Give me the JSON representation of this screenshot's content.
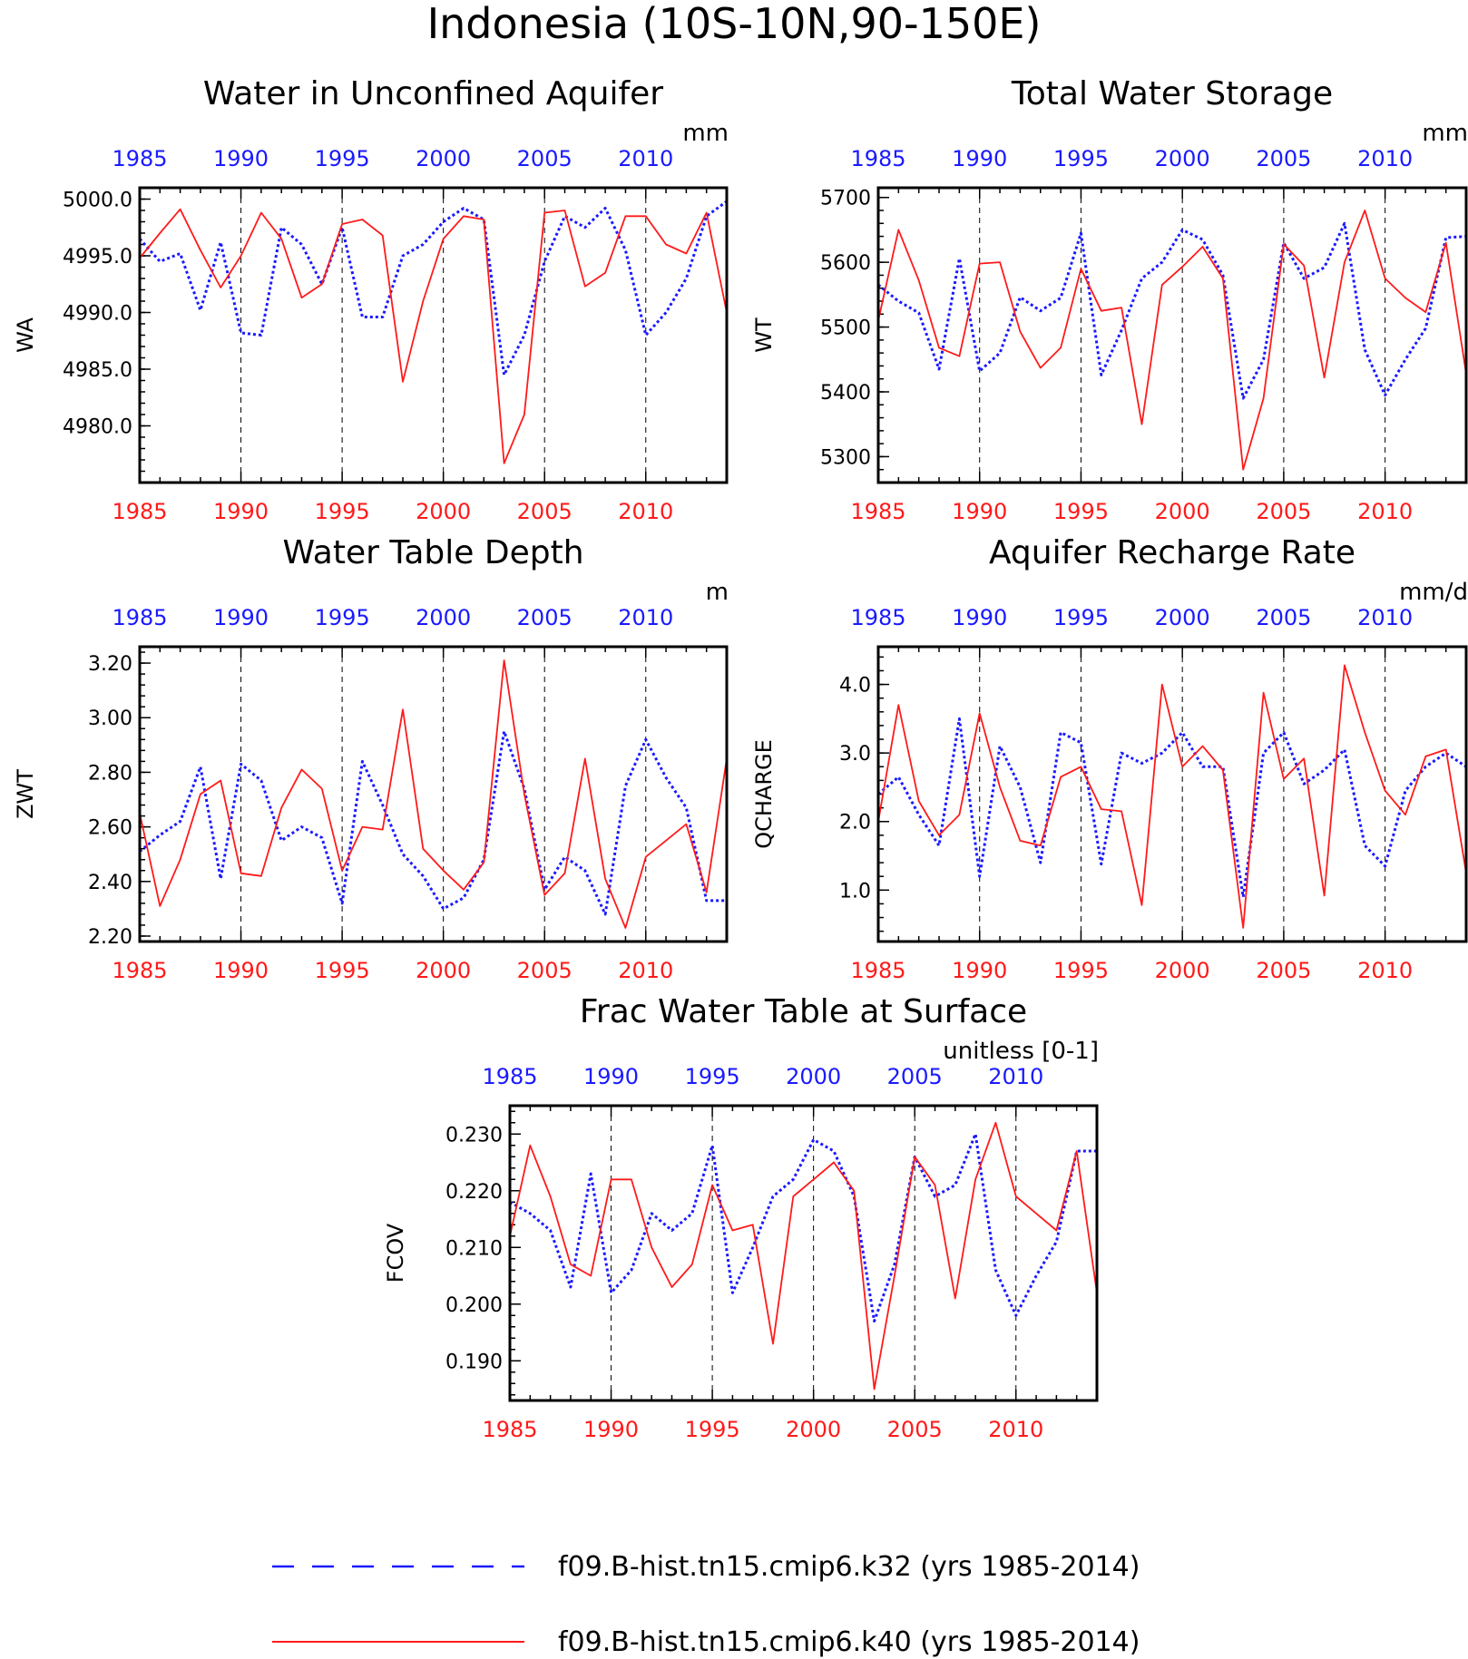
{
  "figure": {
    "title": "Indonesia (10S-10N,90-150E)"
  },
  "legend": [
    {
      "label": "f09.B-hist.tn15.cmip6.k32 (yrs 1985-2014)",
      "color": "#1a1aff",
      "style": "dashed"
    },
    {
      "label": "f09.B-hist.tn15.cmip6.k40 (yrs 1985-2014)",
      "color": "#ff1a1a",
      "style": "solid"
    }
  ],
  "colors": {
    "k32": "#1a1aff",
    "k40": "#ff1a1a",
    "axis": "#000000"
  },
  "chart_data": [
    {
      "type": "line",
      "title": "Water in Unconfined Aquifer",
      "ylabel": "WA",
      "units": "mm",
      "xlim": [
        1985,
        2014
      ],
      "ylim": [
        4975,
        5001
      ],
      "xticks": [
        1985,
        1990,
        1995,
        2000,
        2005,
        2010
      ],
      "yticks": [
        4980,
        4985,
        4990,
        4995,
        5000
      ],
      "ytick_labels": [
        "4980.0",
        "4985.0",
        "4990.0",
        "4995.0",
        "5000.0"
      ],
      "series": [
        {
          "key": "k32",
          "values": [
            4996.5,
            4994.5,
            4995.2,
            4990.2,
            4996.2,
            4988.2,
            4988.0,
            4997.5,
            4996.0,
            4992.5,
            4997.5,
            4989.6,
            4989.6,
            4995.0,
            4996.0,
            4998.0,
            4999.2,
            4998.2,
            4984.5,
            4988.0,
            4994.5,
            4998.5,
            4997.5,
            4999.2,
            4995.5,
            4988.0,
            4990.0,
            4993.0,
            4998.5,
            4999.8
          ]
        },
        {
          "key": "k40",
          "values": [
            4994.8,
            4997.0,
            4999.1,
            4995.5,
            4992.2,
            4995.0,
            4998.8,
            4996.5,
            4991.3,
            4992.5,
            4997.8,
            4998.2,
            4996.8,
            4983.9,
            4991.0,
            4996.5,
            4998.5,
            4998.2,
            4976.7,
            4981.0,
            4998.8,
            4999.0,
            4992.3,
            4993.5,
            4998.5,
            4998.5,
            4996.0,
            4995.2,
            4998.8,
            4990.0
          ]
        }
      ]
    },
    {
      "type": "line",
      "title": "Total Water Storage",
      "ylabel": "WT",
      "units": "mm",
      "xlim": [
        1985,
        2014
      ],
      "ylim": [
        5260,
        5715
      ],
      "xticks": [
        1985,
        1990,
        1995,
        2000,
        2005,
        2010
      ],
      "yticks": [
        5300,
        5400,
        5500,
        5600,
        5700
      ],
      "ytick_labels": [
        "5300",
        "5400",
        "5500",
        "5600",
        "5700"
      ],
      "series": [
        {
          "key": "k32",
          "values": [
            5565,
            5540,
            5522,
            5435,
            5606,
            5432,
            5460,
            5546,
            5525,
            5545,
            5645,
            5426,
            5495,
            5575,
            5600,
            5650,
            5635,
            5580,
            5390,
            5450,
            5630,
            5575,
            5592,
            5660,
            5465,
            5395,
            5450,
            5498,
            5638,
            5640
          ]
        },
        {
          "key": "k40",
          "values": [
            5510,
            5650,
            5572,
            5468,
            5455,
            5598,
            5600,
            5493,
            5437,
            5468,
            5590,
            5525,
            5530,
            5350,
            5565,
            5593,
            5624,
            5575,
            5280,
            5390,
            5628,
            5595,
            5422,
            5600,
            5680,
            5575,
            5545,
            5523,
            5630,
            5428
          ]
        }
      ]
    },
    {
      "type": "line",
      "title": "Water Table Depth",
      "ylabel": "ZWT",
      "units": "m",
      "xlim": [
        1985,
        2014
      ],
      "ylim": [
        2.18,
        3.26
      ],
      "xticks": [
        1985,
        1990,
        1995,
        2000,
        2005,
        2010
      ],
      "yticks": [
        2.2,
        2.4,
        2.6,
        2.8,
        3.0,
        3.2
      ],
      "ytick_labels": [
        "2.20",
        "2.40",
        "2.60",
        "2.80",
        "3.00",
        "3.20"
      ],
      "series": [
        {
          "key": "k32",
          "values": [
            2.51,
            2.57,
            2.62,
            2.82,
            2.41,
            2.83,
            2.77,
            2.55,
            2.6,
            2.56,
            2.32,
            2.84,
            2.68,
            2.5,
            2.42,
            2.3,
            2.34,
            2.48,
            2.95,
            2.74,
            2.37,
            2.49,
            2.44,
            2.28,
            2.75,
            2.92,
            2.78,
            2.67,
            2.33,
            2.33
          ]
        },
        {
          "key": "k40",
          "values": [
            2.65,
            2.31,
            2.48,
            2.72,
            2.77,
            2.43,
            2.42,
            2.67,
            2.81,
            2.74,
            2.44,
            2.6,
            2.59,
            3.03,
            2.52,
            2.44,
            2.37,
            2.47,
            3.21,
            2.72,
            2.35,
            2.43,
            2.85,
            2.41,
            2.23,
            2.49,
            2.55,
            2.61,
            2.36,
            2.85
          ]
        }
      ]
    },
    {
      "type": "line",
      "title": "Aquifer Recharge Rate",
      "ylabel": "QCHARGE",
      "units": "mm/d",
      "xlim": [
        1985,
        2014
      ],
      "ylim": [
        0.25,
        4.55
      ],
      "xticks": [
        1985,
        1990,
        1995,
        2000,
        2005,
        2010
      ],
      "yticks": [
        1.0,
        2.0,
        3.0,
        4.0
      ],
      "ytick_labels": [
        "1.0",
        "2.0",
        "3.0",
        "4.0"
      ],
      "series": [
        {
          "key": "k32",
          "values": [
            2.4,
            2.65,
            2.1,
            1.65,
            3.5,
            1.2,
            3.1,
            2.5,
            1.4,
            3.3,
            3.15,
            1.38,
            3.0,
            2.85,
            3.0,
            3.3,
            2.8,
            2.8,
            0.9,
            3.0,
            3.3,
            2.55,
            2.75,
            3.05,
            1.65,
            1.35,
            2.45,
            2.8,
            3.0,
            2.8
          ]
        },
        {
          "key": "k40",
          "values": [
            2.0,
            3.7,
            2.3,
            1.8,
            2.1,
            3.58,
            2.5,
            1.72,
            1.65,
            2.65,
            2.8,
            2.18,
            2.15,
            0.78,
            4.0,
            2.8,
            3.1,
            2.75,
            0.45,
            3.88,
            2.62,
            2.92,
            0.92,
            4.28,
            3.3,
            2.45,
            2.1,
            2.95,
            3.05,
            1.25
          ]
        }
      ]
    },
    {
      "type": "line",
      "title": "Frac Water Table at Surface",
      "ylabel": "FCOV",
      "units": "unitless [0-1]",
      "xlim": [
        1985,
        2014
      ],
      "ylim": [
        0.183,
        0.235
      ],
      "xticks": [
        1985,
        1990,
        1995,
        2000,
        2005,
        2010
      ],
      "yticks": [
        0.19,
        0.2,
        0.21,
        0.22,
        0.23
      ],
      "ytick_labels": [
        "0.190",
        "0.200",
        "0.210",
        "0.220",
        "0.230"
      ],
      "series": [
        {
          "key": "k32",
          "values": [
            0.218,
            0.216,
            0.213,
            0.203,
            0.223,
            0.202,
            0.206,
            0.216,
            0.213,
            0.216,
            0.228,
            0.202,
            0.21,
            0.219,
            0.222,
            0.229,
            0.227,
            0.219,
            0.197,
            0.207,
            0.226,
            0.219,
            0.221,
            0.23,
            0.206,
            0.198,
            0.205,
            0.211,
            0.227,
            0.227
          ]
        },
        {
          "key": "k40",
          "values": [
            0.212,
            0.228,
            0.219,
            0.207,
            0.205,
            0.222,
            0.222,
            0.21,
            0.203,
            0.207,
            0.221,
            0.213,
            0.214,
            0.193,
            0.219,
            0.222,
            0.225,
            0.22,
            0.185,
            0.205,
            0.226,
            0.221,
            0.201,
            0.222,
            0.232,
            0.219,
            0.216,
            0.213,
            0.227,
            0.202
          ]
        }
      ]
    }
  ]
}
